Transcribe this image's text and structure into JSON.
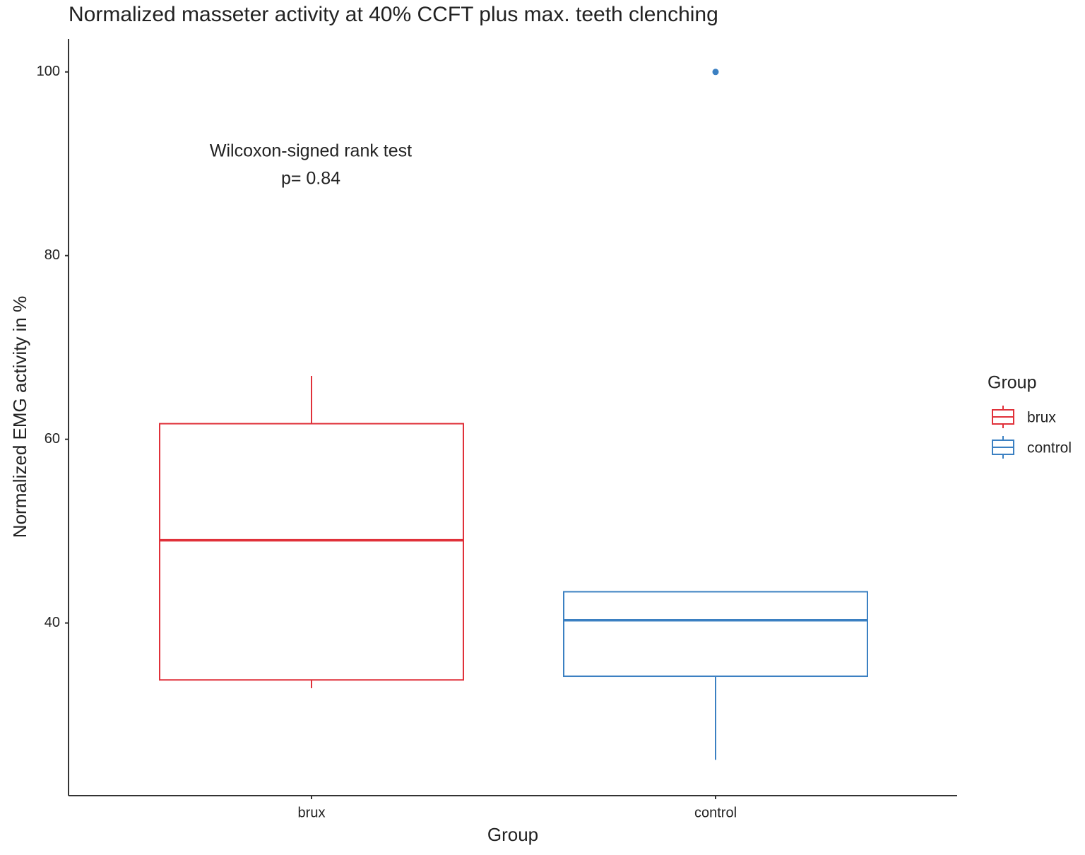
{
  "chart_data": {
    "type": "box",
    "title": "Normalized masseter activity at 40% CCFT plus max. teeth clenching",
    "x_label": "Group",
    "y_label": "Normalized EMG activity in %",
    "categories": [
      "brux",
      "control"
    ],
    "ylim": [
      21.2,
      103.6
    ],
    "yticks": [
      40,
      60,
      80,
      100
    ],
    "legend_title": "Group",
    "legend_position": "right",
    "annotation": [
      "Wilcoxon-signed rank test",
      "p= 0.84"
    ],
    "series": [
      {
        "name": "brux",
        "color": "#e0313a",
        "whisker_low": 32.9,
        "q1": 33.8,
        "median": 49.0,
        "q3": 61.7,
        "whisker_high": 66.9
      },
      {
        "name": "control",
        "color": "#3b80c2",
        "whisker_low": 25.1,
        "q1": 34.2,
        "median": 40.3,
        "q3": 43.4,
        "whisker_high": 43.4,
        "outliers": [
          100
        ]
      }
    ]
  }
}
